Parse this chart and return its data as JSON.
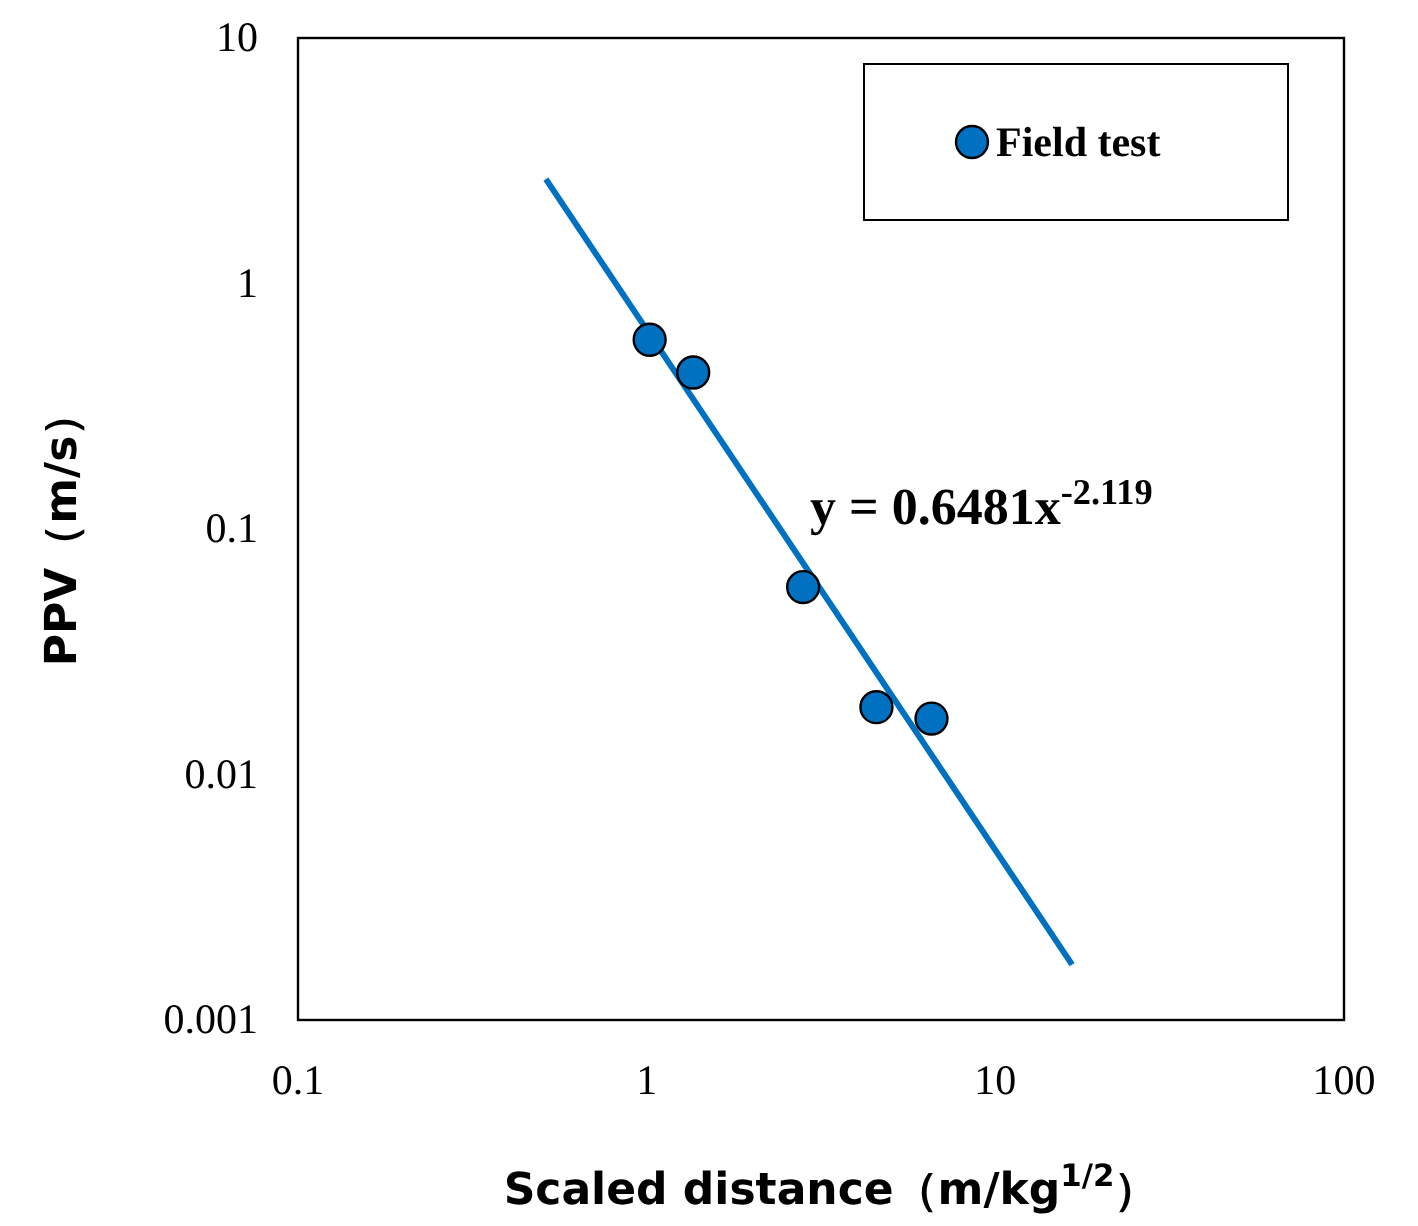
{
  "chart_data": {
    "type": "scatter",
    "xlabel": "Scaled distance（m/kg$^{1/2}$）",
    "ylabel": "PPV（m/s）",
    "log": "xy",
    "grid": false,
    "legend": "top right",
    "marker": "circle",
    "xlim": [
      0.1,
      100
    ],
    "xticks": [
      0.1,
      1,
      10,
      100
    ],
    "ylim": [
      0.001,
      10
    ],
    "yticks": [
      0.001,
      0.01,
      0.1,
      1,
      10
    ],
    "annotations": [
      "y = 0.6481x$^{-2.119}$"
    ],
    "series": [
      {
        "name": "Field test",
        "color": "#0070c0",
        "x": [
          1.02,
          1.36,
          2.81,
          4.56,
          6.56
        ],
        "values": [
          0.59,
          0.434,
          0.058,
          0.0188,
          0.0169
        ]
      },
      {
        "type": "line",
        "color": "#0070c0",
        "line_style": "solid",
        "marker": "none",
        "x": [
          0.514,
          16.6
        ],
        "values": [
          2.66,
          0.00168
        ]
      }
    ]
  }
}
